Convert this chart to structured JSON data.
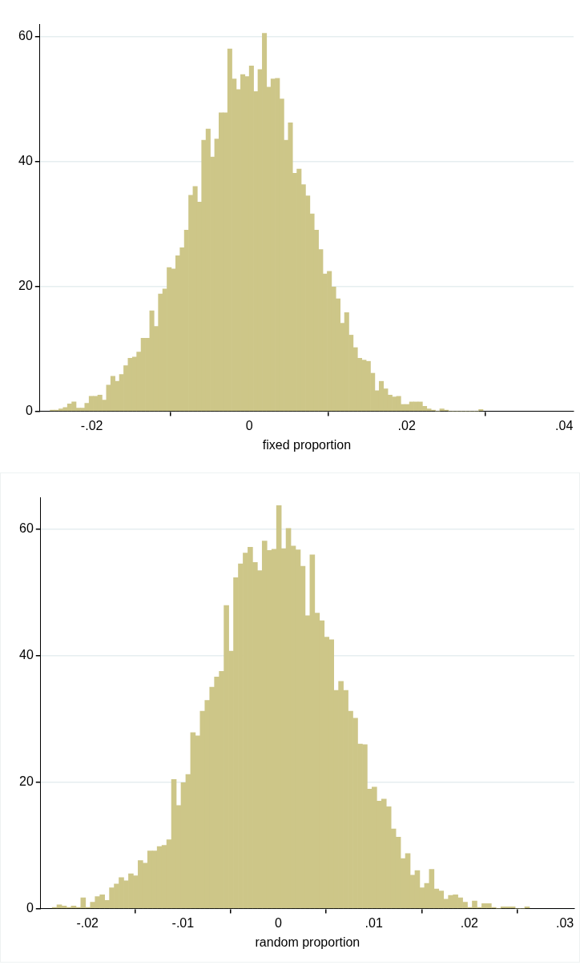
{
  "chart_data": [
    {
      "type": "histogram",
      "xlabel": "fixed proportion",
      "color": "#cdc688",
      "grid": "y",
      "bins": [
        -0.0253,
        -0.02475,
        -0.0242,
        -0.02365,
        -0.0231,
        -0.02255,
        -0.022,
        -0.02145,
        -0.0209,
        -0.02035,
        -0.0198,
        -0.01925,
        -0.0187,
        -0.01815,
        -0.0176,
        -0.01705,
        -0.0165,
        -0.01595,
        -0.0154,
        -0.01485,
        -0.0143,
        -0.01375,
        -0.0132,
        -0.01265,
        -0.0121,
        -0.01155,
        -0.011,
        -0.01045,
        -0.0099,
        -0.00935,
        -0.0088,
        -0.00825,
        -0.0077,
        -0.00715,
        -0.0066,
        -0.00605,
        -0.0055,
        -0.00495,
        -0.0044,
        -0.00385,
        -0.0033,
        -0.00275,
        -0.0022,
        -0.00165,
        -0.0011,
        -0.00055,
        0,
        0.00055,
        0.0011,
        0.00165,
        0.0022,
        0.00275,
        0.0033,
        0.00385,
        0.0044,
        0.00495,
        0.0055,
        0.00605,
        0.0066,
        0.00715,
        0.0077,
        0.00825,
        0.0088,
        0.00935,
        0.0099,
        0.01045,
        0.011,
        0.01155,
        0.0121,
        0.01265,
        0.0132,
        0.01375,
        0.0143,
        0.01485,
        0.0154,
        0.01595,
        0.0165,
        0.01705,
        0.0176,
        0.01815,
        0.0187,
        0.01925,
        0.0198,
        0.02035,
        0.0209,
        0.02145,
        0.022,
        0.02255,
        0.0231,
        0.02365,
        0.0242,
        0.02475,
        0.0253,
        0.02585,
        0.0264,
        0.02695,
        0.0275,
        0.02805,
        0.0286,
        0.02915,
        0.0297
      ],
      "values": [
        0.2,
        0.2,
        0.4,
        0.6,
        1.2,
        1.5,
        0.5,
        0.5,
        1.3,
        2.4,
        2.4,
        2.6,
        1.8,
        4.2,
        5.6,
        4.8,
        5.9,
        7.3,
        8.5,
        8.7,
        9.5,
        11.7,
        11.7,
        16.1,
        13.6,
        18.8,
        19.6,
        23,
        22.8,
        24.9,
        26.2,
        29,
        34.6,
        36.0,
        33.5,
        43.4,
        45.2,
        40.7,
        43.6,
        47.8,
        47.8,
        58.0,
        53.2,
        51.5,
        53.9,
        53.6,
        55.3,
        51.2,
        54.7,
        60.5,
        51.9,
        53.2,
        53.3,
        50.0,
        43.4,
        46.2,
        38.1,
        38.8,
        36.3,
        34.5,
        31.6,
        29.0,
        25.9,
        22,
        22.4,
        19.9,
        18.0,
        14.1,
        15.8,
        12.2,
        10.2,
        8.5,
        8.2,
        8.0,
        6.1,
        3.3,
        4.8,
        3.6,
        2.6,
        2.3,
        2.4,
        1.1,
        1.1,
        1.5,
        1.5,
        1.5,
        0.8,
        0.4,
        0.2,
        0,
        0.4,
        0.2,
        0,
        0,
        0,
        0,
        0,
        0,
        0,
        0.3
      ],
      "xlim": [
        -0.0266,
        0.0412
      ],
      "xticks": [
        {
          "value": -0.02,
          "label": "-.02"
        },
        0,
        {
          "value": 0.02,
          "label": ".02"
        },
        {
          "value": 0.04,
          "label": ".04"
        }
      ],
      "ylim": [
        0,
        62
      ],
      "yticks": [
        0,
        20,
        40,
        60
      ]
    },
    {
      "type": "histogram",
      "xlabel": "random proportion",
      "color": "#cdc688",
      "grid": "y",
      "bins": [
        -0.0237,
        -0.0232,
        -0.0227,
        -0.0222,
        -0.0217,
        -0.0212,
        -0.0207,
        -0.0202,
        -0.0197,
        -0.0192,
        -0.0187,
        -0.0182,
        -0.0177,
        -0.0172,
        -0.0167,
        -0.0162,
        -0.0157,
        -0.0152,
        -0.0147,
        -0.0142,
        -0.0137,
        -0.0132,
        -0.0127,
        -0.0122,
        -0.0117,
        -0.0112,
        -0.0107,
        -0.0102,
        -0.0097,
        -0.0092,
        -0.0087,
        -0.0082,
        -0.0077,
        -0.0072,
        -0.0067,
        -0.0062,
        -0.0057,
        -0.0052,
        -0.0047,
        -0.0042,
        -0.0037,
        -0.0032,
        -0.0027,
        -0.0022,
        -0.0017,
        -0.0012,
        -0.0007,
        -0.0002,
        0.0003,
        0.0008,
        0.0013,
        0.0018,
        0.0023,
        0.0028,
        0.0033,
        0.0038,
        0.0043,
        0.0048,
        0.0053,
        0.0058,
        0.0063,
        0.0068,
        0.0073,
        0.0078,
        0.0083,
        0.0088,
        0.0093,
        0.0098,
        0.0103,
        0.0108,
        0.0113,
        0.0118,
        0.0123,
        0.0128,
        0.0133,
        0.0138,
        0.0143,
        0.0148,
        0.0153,
        0.0158,
        0.0163,
        0.0168,
        0.0173,
        0.0178,
        0.0183,
        0.0188,
        0.0193,
        0.0198,
        0.0203,
        0.0208,
        0.0213,
        0.0218,
        0.0223,
        0.0228,
        0.0233,
        0.0238,
        0.0243,
        0.0248,
        0.0253,
        0.0258,
        0.0263
      ],
      "values": [
        0.2,
        0.6,
        0.4,
        0.2,
        0.4,
        0.2,
        1.7,
        0.2,
        1.0,
        1.9,
        2.2,
        1.3,
        3.3,
        3.9,
        4.9,
        4.4,
        5.5,
        5.2,
        7.6,
        7.2,
        9.1,
        9.1,
        9.8,
        10.0,
        10.9,
        20.4,
        16.3,
        19.9,
        21.2,
        27.8,
        27.3,
        31.2,
        32.9,
        35.0,
        36.6,
        37.5,
        47.9,
        40.7,
        52.3,
        54.5,
        56.2,
        57.1,
        54.7,
        53.4,
        58.1,
        56.6,
        56.8,
        63.7,
        56.9,
        60.1,
        57.3,
        56.7,
        54.1,
        46.3,
        55.9,
        46.7,
        45.5,
        42.9,
        42.5,
        34.5,
        35.9,
        34.5,
        31.2,
        30.1,
        26.0,
        25.9,
        18.9,
        19.2,
        17.0,
        17.3,
        16.1,
        12.6,
        11.3,
        7.9,
        8.7,
        5.3,
        6.0,
        3.3,
        4.0,
        6.2,
        3.1,
        2.8,
        1.5,
        2.1,
        2.2,
        1.7,
        1.0,
        0.2,
        1.2,
        0.2,
        0.8,
        0.8,
        0.2,
        0,
        0.3,
        0.3,
        0.3,
        0,
        0,
        0.3
      ],
      "xlim": [
        -0.0249,
        0.031
      ],
      "xticks": [
        {
          "value": -0.02,
          "label": "-.02"
        },
        {
          "value": -0.01,
          "label": "-.01"
        },
        0,
        {
          "value": 0.01,
          "label": ".01"
        },
        {
          "value": 0.02,
          "label": ".02"
        },
        {
          "value": 0.03,
          "label": ".03"
        }
      ],
      "ylim": [
        0,
        65
      ],
      "yticks": [
        0,
        20,
        40,
        60
      ]
    }
  ]
}
